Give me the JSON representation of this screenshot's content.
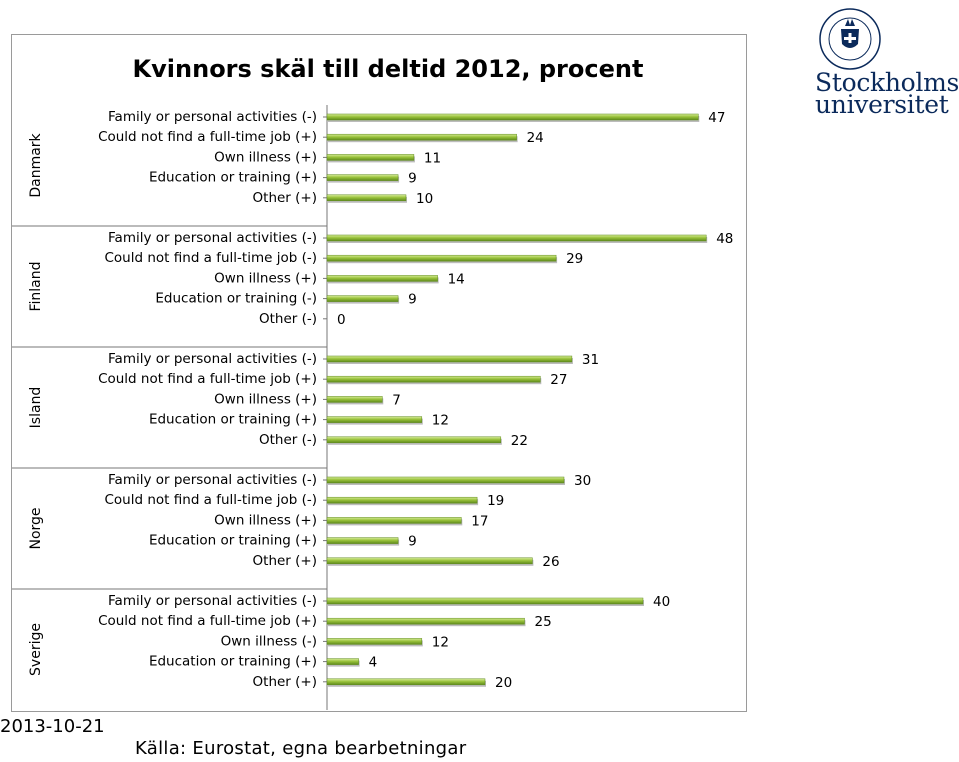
{
  "logo": {
    "seal_text": "UNIVERSITET · STOCKHOLMS ·",
    "name_line1": "Stockholms",
    "name_line2": "universitet",
    "colors": {
      "navy": "#0b2a5b"
    }
  },
  "footer": {
    "date": "2013-10-21",
    "source": "Källa: Eurostat, egna bearbetningar"
  },
  "chart_data": {
    "type": "bar",
    "orientation": "horizontal",
    "title": "Kvinnors skäl till deltid 2012, procent",
    "xlim": [
      0,
      50
    ],
    "grid": false,
    "bar_color": "#9ac33c",
    "groups": [
      {
        "name": "Danmark",
        "categories": [
          "Family or personal activities (-)",
          "Could not find a full-time job (+)",
          "Own illness (+)",
          "Education or training (+)",
          "Other (+)"
        ],
        "values": [
          47,
          24,
          11,
          9,
          10
        ]
      },
      {
        "name": "Finland",
        "categories": [
          "Family or personal activities (-)",
          "Could not find a full-time job (-)",
          "Own illness (+)",
          "Education or training (-)",
          "Other (-)"
        ],
        "values": [
          48,
          29,
          14,
          9,
          0
        ]
      },
      {
        "name": "Island",
        "categories": [
          "Family or personal activities (-)",
          "Could not find a full-time job (+)",
          "Own illness (+)",
          "Education or training (+)",
          "Other (-)"
        ],
        "values": [
          31,
          27,
          7,
          12,
          22
        ]
      },
      {
        "name": "Norge",
        "categories": [
          "Family or personal activities (-)",
          "Could not find a full-time job (-)",
          "Own illness (+)",
          "Education or training (+)",
          "Other (+)"
        ],
        "values": [
          30,
          19,
          17,
          9,
          26
        ]
      },
      {
        "name": "Sverige",
        "categories": [
          "Family or personal activities (-)",
          "Could not find a full-time job (+)",
          "Own illness (-)",
          "Education or training (+)",
          "Other (+)"
        ],
        "values": [
          40,
          25,
          12,
          4,
          20
        ]
      }
    ]
  }
}
